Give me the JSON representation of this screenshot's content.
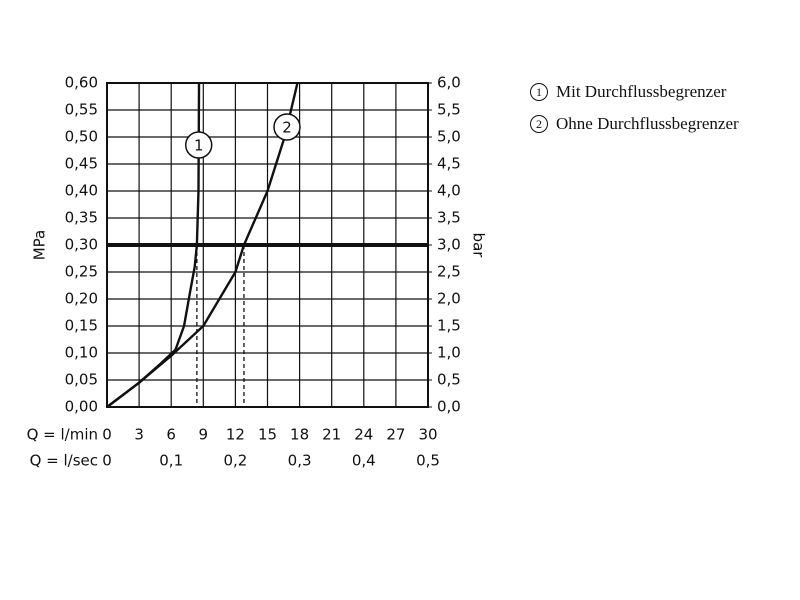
{
  "chart_data": {
    "type": "line",
    "y_label": "MPa",
    "y2_label": "bar",
    "x_label": "Q = l/min",
    "x2_label": "Q = l/sec",
    "xlim": [
      0,
      30
    ],
    "xticks": [
      0,
      3,
      6,
      9,
      12,
      15,
      18,
      21,
      24,
      27,
      30
    ],
    "x2lim": [
      0,
      0.5
    ],
    "x2ticks": [
      0,
      {
        "value": 0.1,
        "label": "0,1"
      },
      {
        "value": 0.2,
        "label": "0,2"
      },
      {
        "value": 0.3,
        "label": "0,3"
      },
      {
        "value": 0.4,
        "label": "0,4"
      },
      {
        "value": 0.5,
        "label": "0,5"
      }
    ],
    "ylim": [
      0,
      0.6
    ],
    "yticks": [
      {
        "value": 0,
        "label": "0,00"
      },
      {
        "value": 0.05,
        "label": "0,05"
      },
      {
        "value": 0.1,
        "label": "0,10"
      },
      {
        "value": 0.15,
        "label": "0,15"
      },
      {
        "value": 0.2,
        "label": "0,20"
      },
      {
        "value": 0.25,
        "label": "0,25"
      },
      {
        "value": 0.3,
        "label": "0,30"
      },
      {
        "value": 0.35,
        "label": "0,35"
      },
      {
        "value": 0.4,
        "label": "0,40"
      },
      {
        "value": 0.45,
        "label": "0,45"
      },
      {
        "value": 0.5,
        "label": "0,50"
      },
      {
        "value": 0.55,
        "label": "0,55"
      },
      {
        "value": 0.6,
        "label": "0,60"
      }
    ],
    "y2lim": [
      0,
      6
    ],
    "y2ticks": [
      {
        "value": 0,
        "label": "0,0"
      },
      {
        "value": 0.5,
        "label": "0,5"
      },
      {
        "value": 1,
        "label": "1,0"
      },
      {
        "value": 1.5,
        "label": "1,5"
      },
      {
        "value": 2,
        "label": "2,0"
      },
      {
        "value": 2.5,
        "label": "2,5"
      },
      {
        "value": 3,
        "label": "3,0"
      },
      {
        "value": 3.5,
        "label": "3,5"
      },
      {
        "value": 4,
        "label": "4,0"
      },
      {
        "value": 4.5,
        "label": "4,5"
      },
      {
        "value": 5,
        "label": "5,0"
      },
      {
        "value": 5.5,
        "label": "5,5"
      },
      {
        "value": 6,
        "label": "6,0"
      }
    ],
    "grid": true,
    "reference_y": 0.3,
    "drop_lines_x": [
      8.4,
      12.8
    ],
    "series": [
      {
        "name": "Mit Durchflussbegrenzer",
        "label": "1",
        "color": "#111111",
        "x": [
          0,
          3,
          5,
          6.4,
          7.2,
          7.8,
          8.2,
          8.4,
          8.55,
          8.6
        ],
        "values": [
          0,
          0.045,
          0.08,
          0.106,
          0.15,
          0.217,
          0.26,
          0.3,
          0.4,
          0.6
        ]
      },
      {
        "name": "Ohne Durchflussbegrenzer",
        "label": "2",
        "color": "#111111",
        "x": [
          0,
          3,
          6,
          9,
          12,
          12.8,
          15,
          16.6,
          17.8
        ],
        "values": [
          0,
          0.045,
          0.095,
          0.15,
          0.25,
          0.3,
          0.4,
          0.5,
          0.6
        ]
      }
    ]
  }
}
